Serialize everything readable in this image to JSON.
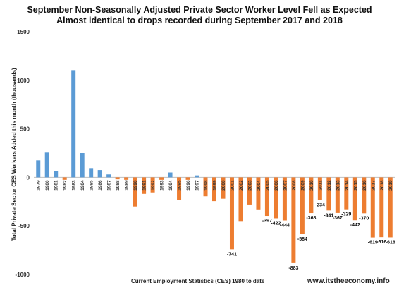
{
  "title": "September Non-Seasonally Adjusted Private Sector Worker Level Fell as Expected",
  "subtitle": "Almost identical to drops recorded during September 2017 and 2018",
  "source_text": "www.itstheeconomy.info",
  "colors": {
    "positive": "#5b9bd5",
    "negative": "#ed7d31",
    "zero_line": "#bfbfbf"
  },
  "chart_data": {
    "type": "bar",
    "title": "September Non-Seasonally Adjusted Private Sector Worker Level Fell as Expected",
    "subtitle": "Almost identical to drops recorded during September 2017 and 2018",
    "xlabel": "Current Employment Statistics (CES) 1980 to date",
    "ylabel": "Total Private Sector CES Workers Added this month (thousands)",
    "ylim": [
      -1000,
      1500
    ],
    "yticks": [
      1500,
      1000,
      500,
      0,
      -500,
      -1000
    ],
    "grid": false,
    "categories": [
      "1979",
      "1980",
      "1981",
      "1982",
      "1983",
      "1984",
      "1985",
      "1986",
      "1987",
      "1988",
      "1989",
      "1990",
      "1991",
      "1992",
      "1993",
      "1994",
      "1995",
      "1996",
      "1997",
      "1998",
      "1999",
      "2000",
      "2001",
      "2002",
      "2003",
      "2004",
      "2005",
      "2006",
      "2007",
      "2008",
      "2009",
      "2010",
      "2011",
      "2012",
      "2013",
      "2014",
      "2015",
      "2016",
      "2017",
      "2018",
      "2019"
    ],
    "values": [
      175,
      255,
      65,
      -25,
      1105,
      250,
      95,
      75,
      30,
      -20,
      -25,
      -300,
      -170,
      -155,
      -25,
      50,
      -235,
      -25,
      20,
      -195,
      -245,
      -220,
      -741,
      -450,
      -280,
      -330,
      -397,
      -422,
      -444,
      -883,
      -584,
      -368,
      -234,
      -341,
      -367,
      -329,
      -442,
      -370,
      -619,
      -616,
      -618
    ],
    "data_labels": {
      "2001": "-741",
      "2005": "-397",
      "2006": "-422",
      "2007": "-444",
      "2008": "-883",
      "2009": "-584",
      "2010": "-368",
      "2011": "-234",
      "2012": "-341",
      "2013": "-367",
      "2014": "-329",
      "2015": "-442",
      "2016": "-370",
      "2017": "-619",
      "2018": "-616",
      "2019": "-618"
    }
  }
}
